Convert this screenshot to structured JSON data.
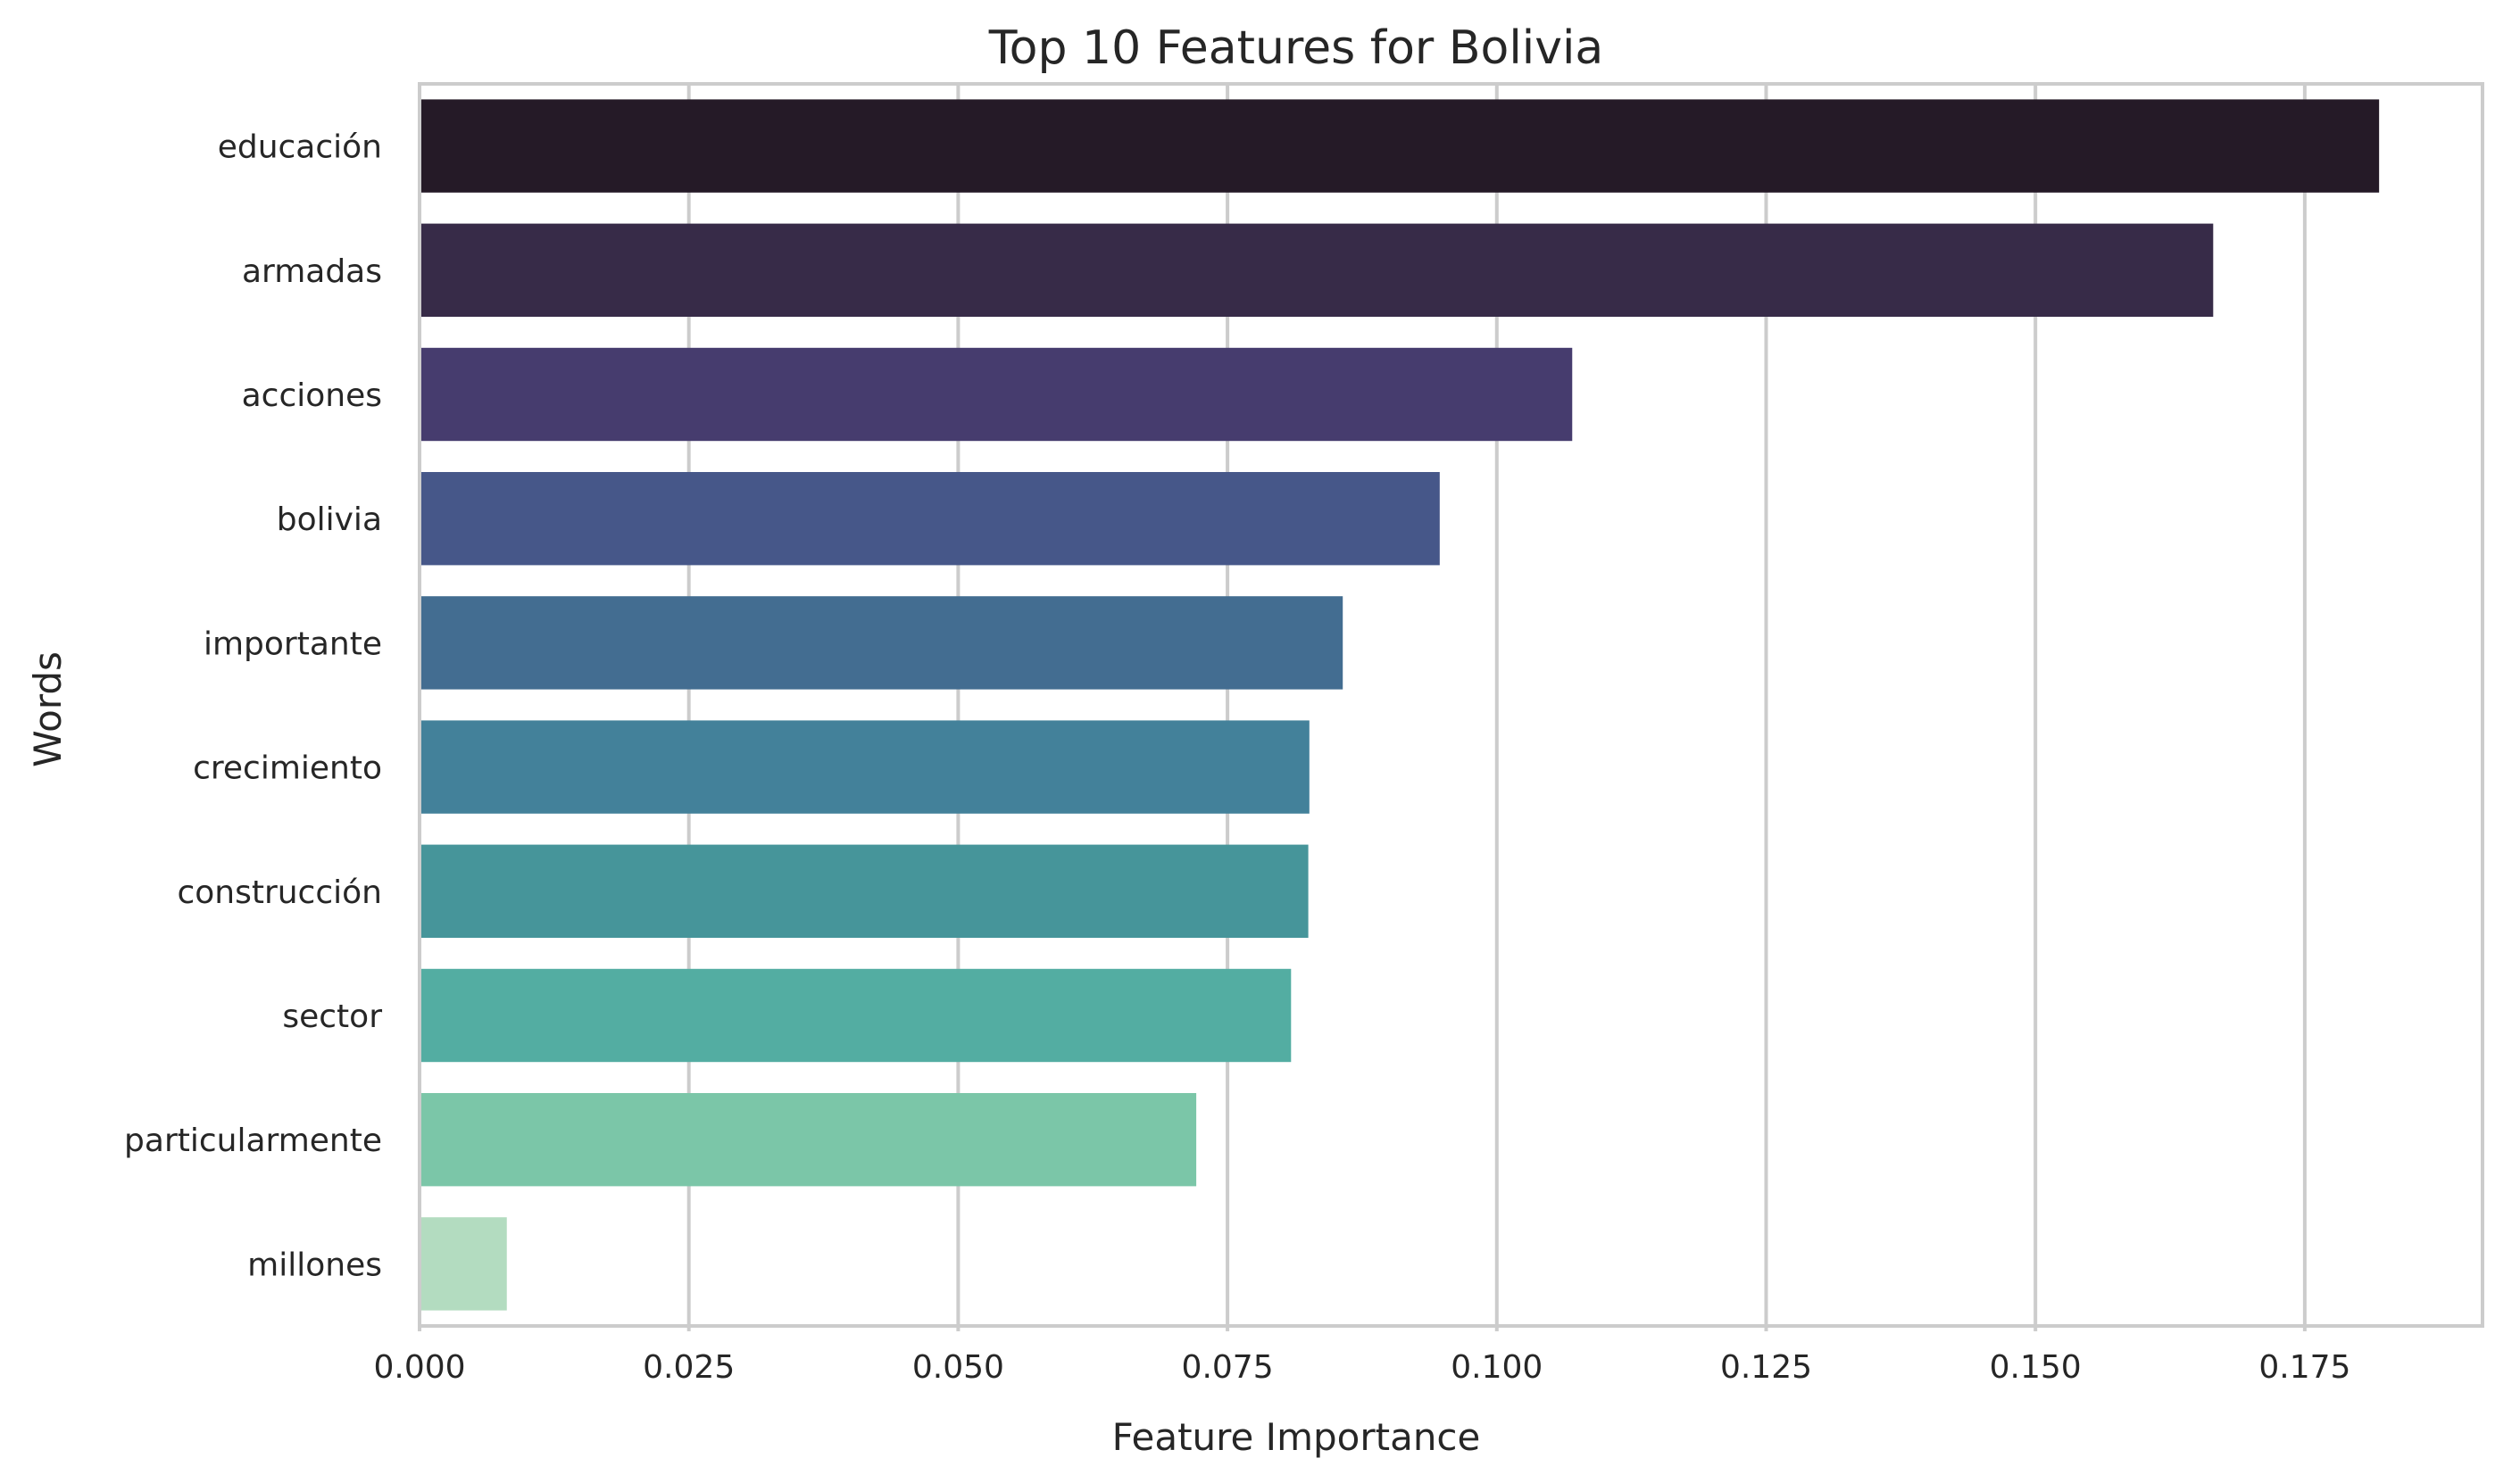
{
  "chart_data": {
    "type": "bar",
    "orientation": "horizontal",
    "title": "Top 10 Features for Bolivia",
    "xlabel": "Feature Importance",
    "ylabel": "Words",
    "xlim": [
      0,
      0.1915
    ],
    "xticks": [
      0.0,
      0.025,
      0.05,
      0.075,
      0.1,
      0.125,
      0.15,
      0.175
    ],
    "xtick_labels": [
      "0.000",
      "0.025",
      "0.050",
      "0.075",
      "0.100",
      "0.125",
      "0.150",
      "0.175"
    ],
    "grid": true,
    "categories": [
      "educación",
      "armadas",
      "acciones",
      "bolivia",
      "importante",
      "crecimiento",
      "construcción",
      "sector",
      "particularmente",
      "millones"
    ],
    "values": [
      0.1819,
      0.1665,
      0.107,
      0.0947,
      0.0857,
      0.0826,
      0.0825,
      0.0809,
      0.0721,
      0.0081
    ],
    "colors": [
      "#251a27",
      "#372b48",
      "#463c6e",
      "#465789",
      "#436d91",
      "#43819a",
      "#46959a",
      "#53ada2",
      "#7bc6a8",
      "#b3dcc0"
    ]
  }
}
